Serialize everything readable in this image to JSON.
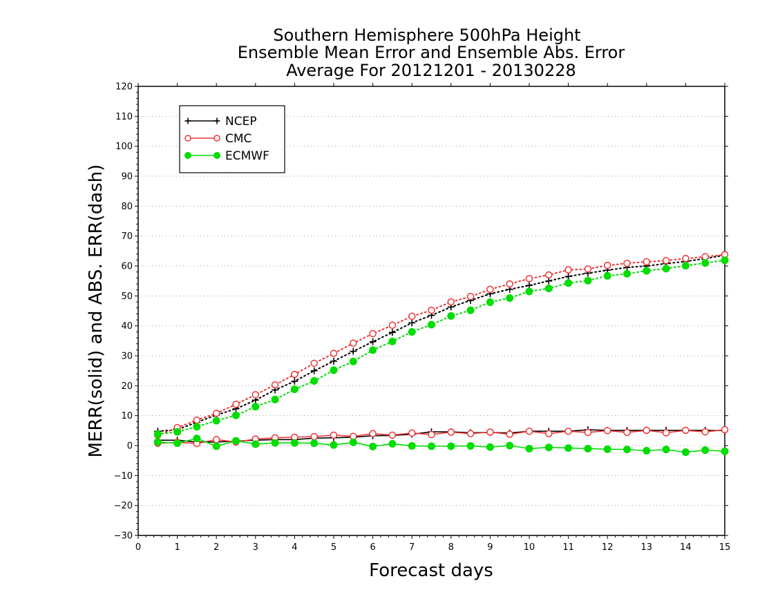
{
  "chart_data": {
    "type": "line",
    "title": [
      "Southern Hemisphere 500hPa Height",
      "Ensemble Mean Error and Ensemble Abs. Error",
      "Average For 20121201 - 20130228"
    ],
    "xlabel": "Forecast days",
    "ylabel": "MERR(solid) and ABS. ERR(dash)",
    "xlim": [
      0,
      15
    ],
    "ylim": [
      -30,
      120
    ],
    "xticks": [
      "0",
      "1",
      "2",
      "3",
      "4",
      "5",
      "6",
      "7",
      "8",
      "9",
      "10",
      "11",
      "12",
      "13",
      "14",
      "15"
    ],
    "yticks": [
      "−30",
      "−20",
      "−10",
      "0",
      "10",
      "20",
      "30",
      "40",
      "50",
      "60",
      "70",
      "80",
      "90",
      "100",
      "110",
      "120"
    ],
    "grid": true,
    "legend_position": "top-left",
    "x": [
      0.5,
      1,
      1.5,
      2,
      2.5,
      3,
      3.5,
      4,
      4.5,
      5,
      5.5,
      6,
      6.5,
      7,
      7.5,
      8,
      8.5,
      9,
      9.5,
      10,
      10.5,
      11,
      11.5,
      12,
      12.5,
      13,
      13.5,
      14,
      14.5,
      15
    ],
    "series": [
      {
        "name": "NCEP",
        "color": "#000000",
        "marker": "plus",
        "mean_error": [
          1.8,
          1.8,
          1.2,
          1.2,
          1.5,
          1.8,
          2,
          2,
          2.5,
          2.6,
          2.8,
          3.3,
          3.4,
          3.8,
          4.6,
          4.6,
          4.3,
          4.4,
          4.2,
          4.8,
          4.8,
          4.8,
          5.3,
          5.1,
          5.1,
          5.1,
          5.1,
          5.1,
          5.1,
          5
        ],
        "abs_error": [
          4.8,
          5.3,
          7.8,
          10.2,
          12.3,
          15.2,
          18.6,
          21.5,
          25,
          28.2,
          31.5,
          34.7,
          37.8,
          41,
          43.5,
          46.3,
          48.5,
          50.7,
          52.2,
          53.5,
          55,
          56.5,
          57.6,
          58.6,
          59.5,
          60,
          60.8,
          61.5,
          62.5,
          63.6
        ]
      },
      {
        "name": "CMC",
        "color": "#ee3333",
        "marker": "open-circle",
        "mean_error": [
          0.8,
          1.1,
          0.7,
          2,
          1.2,
          2.2,
          2.6,
          2.8,
          3,
          3.5,
          3.1,
          4,
          3.5,
          4.2,
          3.7,
          4.5,
          4,
          4.5,
          3.8,
          4.8,
          4,
          4.8,
          4.4,
          5,
          4.4,
          5.1,
          4.3,
          5.1,
          4.6,
          5.3
        ],
        "abs_error": [
          3.5,
          6,
          8.5,
          10.8,
          13.8,
          17,
          20.3,
          23.8,
          27.5,
          30.8,
          34.2,
          37.4,
          40.2,
          43.2,
          45.2,
          48,
          49.8,
          52.2,
          54,
          55.8,
          57,
          58.7,
          59,
          60.2,
          60.9,
          61.4,
          61.8,
          62.5,
          63.1,
          63.8
        ]
      },
      {
        "name": "ECMWF",
        "color": "#00dd00",
        "marker": "filled-circle",
        "mean_error": [
          1.2,
          0.8,
          2.4,
          -0.2,
          1.6,
          0.5,
          0.9,
          0.9,
          0.8,
          0.2,
          1.1,
          -0.3,
          0.6,
          -0.1,
          -0.2,
          -0.2,
          -0.1,
          -0.5,
          0,
          -1,
          -0.6,
          -0.8,
          -1,
          -1.2,
          -1.3,
          -1.7,
          -1.3,
          -2.2,
          -1.5,
          -1.9
        ],
        "abs_error": [
          3.8,
          4.6,
          6.3,
          8.3,
          10.1,
          13,
          15.4,
          18.8,
          21.6,
          25.2,
          28.1,
          31.9,
          34.8,
          38,
          40.4,
          43.3,
          45.2,
          47.9,
          49.3,
          51.5,
          52.5,
          54.3,
          55.1,
          56.7,
          57.4,
          58.4,
          59.1,
          60.1,
          61,
          61.9
        ]
      }
    ]
  }
}
